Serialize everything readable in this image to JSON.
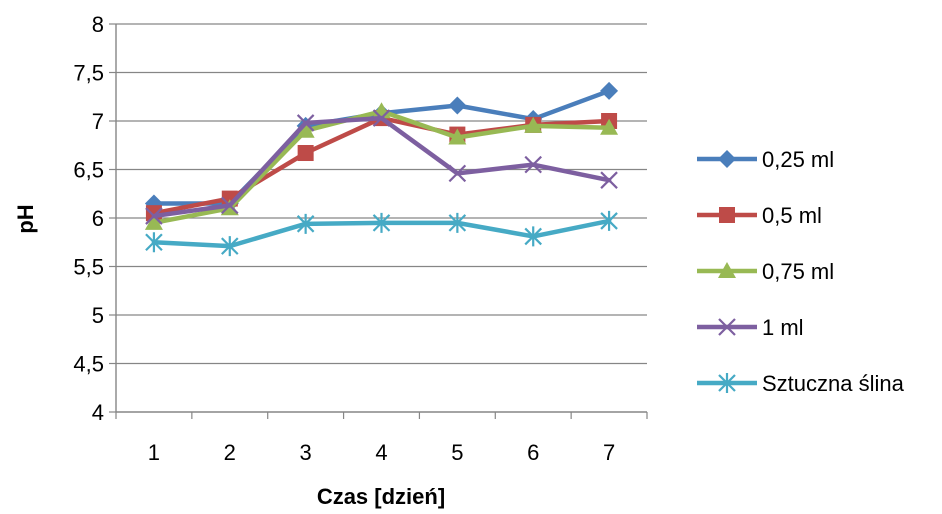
{
  "chart_data": {
    "type": "line",
    "x": [
      1,
      2,
      3,
      4,
      5,
      6,
      7
    ],
    "x_tick_labels": [
      "1",
      "2",
      "3",
      "4",
      "5",
      "6",
      "7"
    ],
    "y_tick_labels": [
      "4",
      "4,5",
      "5",
      "5,5",
      "6",
      "6,5",
      "7",
      "7,5",
      "8"
    ],
    "ylim": [
      4,
      8
    ],
    "xlabel": "Czas [dzień]",
    "ylabel": "pH",
    "grid": "horizontal",
    "legend_position": "right",
    "series": [
      {
        "name": "0,25 ml",
        "color": "#4a7ebb",
        "marker": "diamond",
        "values": [
          6.15,
          6.15,
          6.95,
          7.08,
          7.16,
          7.02,
          7.31
        ]
      },
      {
        "name": "0,5 ml",
        "color": "#be4b48",
        "marker": "square",
        "values": [
          6.05,
          6.2,
          6.67,
          7.03,
          6.86,
          6.96,
          7.0
        ]
      },
      {
        "name": "0,75 ml",
        "color": "#98b954",
        "marker": "triangle",
        "values": [
          5.95,
          6.1,
          6.9,
          7.1,
          6.83,
          6.95,
          6.93
        ]
      },
      {
        "name": "1 ml",
        "color": "#7d5fa0",
        "marker": "x",
        "values": [
          6.02,
          6.13,
          6.98,
          7.03,
          6.46,
          6.55,
          6.39
        ]
      },
      {
        "name": "Sztuczna ślina",
        "color": "#46aac5",
        "marker": "star",
        "values": [
          5.75,
          5.71,
          5.94,
          5.95,
          5.95,
          5.81,
          5.97
        ]
      }
    ]
  }
}
